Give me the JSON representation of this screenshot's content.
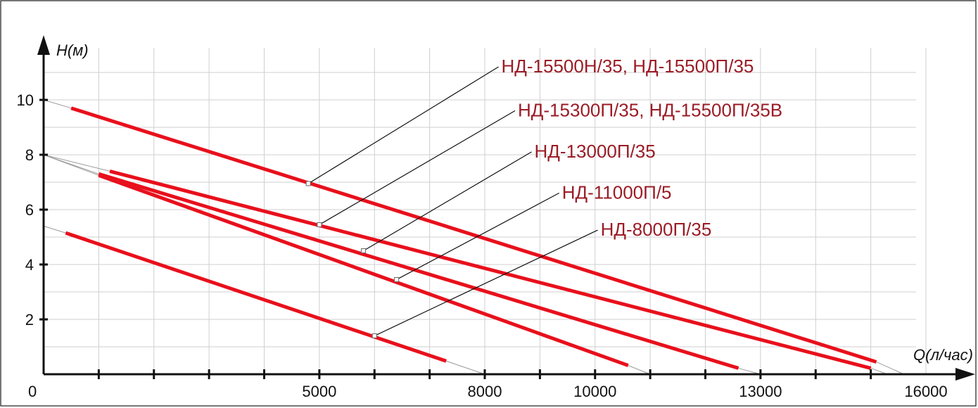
{
  "chart_data": {
    "type": "line",
    "title": "",
    "xlabel": "Q(л/час)",
    "ylabel": "H(м)",
    "xlim": [
      0,
      16000
    ],
    "ylim": [
      0,
      11
    ],
    "x_ticks": [
      0,
      5000,
      8000,
      10000,
      13000,
      16000
    ],
    "x_tick_labels": [
      "0",
      "5000",
      "8000",
      "10000",
      "13000",
      "16000"
    ],
    "y_ticks": [
      2,
      4,
      6,
      8,
      10
    ],
    "y_tick_labels": [
      "2",
      "4",
      "6",
      "8",
      "10"
    ],
    "grid": true,
    "series": [
      {
        "name": "НД-15500Н/35, НД-15500П/35",
        "zero_flow_head": 10,
        "max_flow": 15600,
        "x": [
          500,
          15100
        ],
        "y": [
          9.7,
          0.45
        ],
        "marker": [
          4800,
          6.95
        ],
        "label_anchor": [
          8300,
          11.0
        ]
      },
      {
        "name": "НД-15300П/35, НД-15500П/35В",
        "zero_flow_head": 8,
        "max_flow": 15300,
        "x": [
          1200,
          15000
        ],
        "y": [
          7.4,
          0.22
        ],
        "marker": [
          5000,
          5.45
        ],
        "label_anchor": [
          8600,
          9.4
        ]
      },
      {
        "name": "НД-13000П/35",
        "zero_flow_head": 8,
        "max_flow": 13000,
        "x": [
          1000,
          12600
        ],
        "y": [
          7.3,
          0.22
        ],
        "marker": [
          5800,
          4.5
        ],
        "label_anchor": [
          8900,
          7.9
        ]
      },
      {
        "name": "НД-11000П/5",
        "zero_flow_head": 8,
        "max_flow": 11000,
        "x": [
          1000,
          10600
        ],
        "y": [
          7.25,
          0.32
        ],
        "marker": [
          6400,
          3.45
        ],
        "label_anchor": [
          9400,
          6.4
        ]
      },
      {
        "name": "НД-8000П/35",
        "zero_flow_head": 5.4,
        "max_flow": 8000,
        "x": [
          400,
          7300
        ],
        "y": [
          5.15,
          0.48
        ],
        "marker": [
          6000,
          1.4
        ],
        "label_anchor": [
          10100,
          5.05
        ]
      }
    ]
  }
}
